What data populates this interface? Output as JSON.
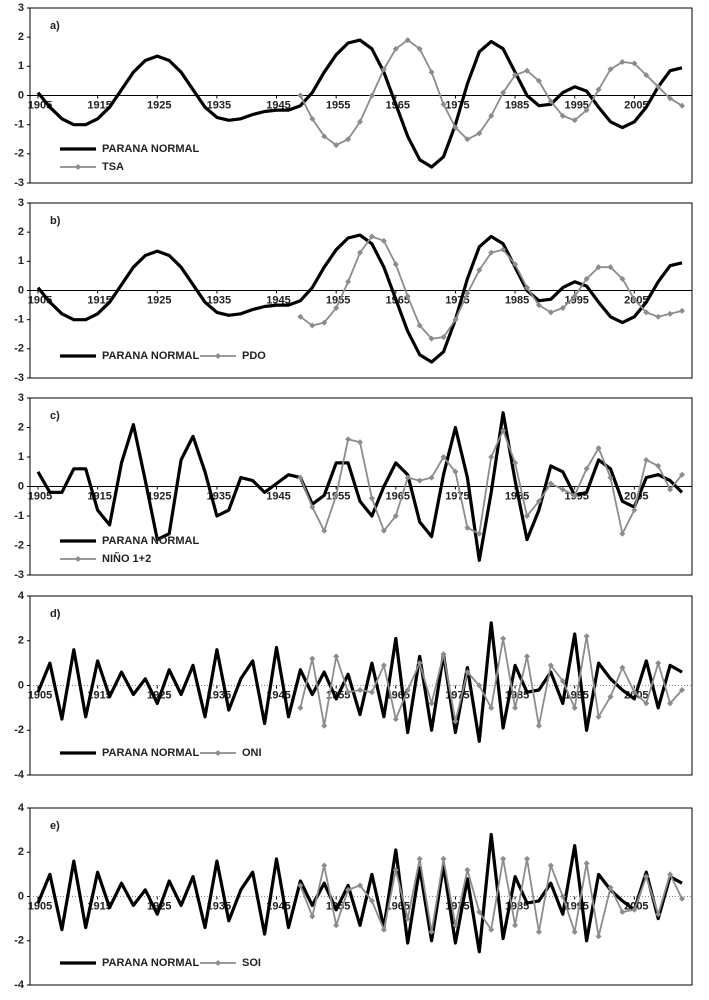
{
  "chart_data": [
    {
      "type": "line",
      "title": "a)",
      "x": [
        1905,
        1907,
        1909,
        1911,
        1913,
        1915,
        1917,
        1919,
        1921,
        1923,
        1925,
        1927,
        1929,
        1931,
        1933,
        1935,
        1937,
        1939,
        1941,
        1943,
        1945,
        1947,
        1949,
        1951,
        1953,
        1955,
        1957,
        1959,
        1961,
        1963,
        1965,
        1967,
        1969,
        1971,
        1973,
        1975,
        1977,
        1979,
        1981,
        1983,
        1985,
        1987,
        1989,
        1991,
        1993,
        1995,
        1997,
        1999,
        2001,
        2003,
        2005,
        2007,
        2009,
        2011,
        2013
      ],
      "xlim": [
        1905,
        2014
      ],
      "xticks": [
        1905,
        1915,
        1925,
        1935,
        1945,
        1955,
        1965,
        1975,
        1985,
        1995,
        2005
      ],
      "ylim": [
        -3,
        3
      ],
      "yticks": [
        -3,
        -2,
        -1,
        0,
        1,
        2,
        3
      ],
      "zero_line": "solid",
      "legend": "lower left",
      "series": [
        {
          "name": "PARANA NORMAL",
          "color": "#000000",
          "marker": "none",
          "values": [
            0.1,
            -0.4,
            -0.8,
            -1.0,
            -1.0,
            -0.8,
            -0.4,
            0.2,
            0.8,
            1.2,
            1.35,
            1.2,
            0.8,
            0.2,
            -0.4,
            -0.75,
            -0.85,
            -0.8,
            -0.65,
            -0.55,
            -0.5,
            -0.5,
            -0.35,
            0.1,
            0.8,
            1.4,
            1.8,
            1.9,
            1.6,
            0.8,
            -0.3,
            -1.4,
            -2.2,
            -2.45,
            -2.1,
            -1.0,
            0.4,
            1.5,
            1.85,
            1.6,
            0.8,
            0.0,
            -0.35,
            -0.3,
            0.1,
            0.3,
            0.15,
            -0.4,
            -0.9,
            -1.1,
            -0.9,
            -0.4,
            0.3,
            0.85,
            0.95
          ]
        },
        {
          "name": "TSA",
          "color": "#8c8c8c",
          "marker": "diamond",
          "values": [
            null,
            null,
            null,
            null,
            null,
            null,
            null,
            null,
            null,
            null,
            null,
            null,
            null,
            null,
            null,
            null,
            null,
            null,
            null,
            null,
            null,
            null,
            0.0,
            -0.8,
            -1.4,
            -1.7,
            -1.5,
            -0.9,
            0.0,
            0.9,
            1.6,
            1.9,
            1.6,
            0.8,
            -0.3,
            -1.1,
            -1.5,
            -1.3,
            -0.7,
            0.1,
            0.7,
            0.85,
            0.5,
            -0.2,
            -0.7,
            -0.85,
            -0.5,
            0.2,
            0.9,
            1.15,
            1.1,
            0.7,
            0.3,
            -0.1,
            -0.35
          ]
        }
      ]
    },
    {
      "type": "line",
      "title": "b)",
      "x": [
        1905,
        1907,
        1909,
        1911,
        1913,
        1915,
        1917,
        1919,
        1921,
        1923,
        1925,
        1927,
        1929,
        1931,
        1933,
        1935,
        1937,
        1939,
        1941,
        1943,
        1945,
        1947,
        1949,
        1951,
        1953,
        1955,
        1957,
        1959,
        1961,
        1963,
        1965,
        1967,
        1969,
        1971,
        1973,
        1975,
        1977,
        1979,
        1981,
        1983,
        1985,
        1987,
        1989,
        1991,
        1993,
        1995,
        1997,
        1999,
        2001,
        2003,
        2005,
        2007,
        2009,
        2011,
        2013
      ],
      "xlim": [
        1905,
        2014
      ],
      "xticks": [
        1905,
        1915,
        1925,
        1935,
        1945,
        1955,
        1965,
        1975,
        1985,
        1995,
        2005
      ],
      "ylim": [
        -3,
        3
      ],
      "yticks": [
        -3,
        -2,
        -1,
        0,
        1,
        2,
        3
      ],
      "zero_line": "solid",
      "legend": "lower left",
      "series": [
        {
          "name": "PARANA NORMAL",
          "color": "#000000",
          "marker": "none",
          "values": [
            0.1,
            -0.4,
            -0.8,
            -1.0,
            -1.0,
            -0.8,
            -0.4,
            0.2,
            0.8,
            1.2,
            1.35,
            1.2,
            0.8,
            0.2,
            -0.4,
            -0.75,
            -0.85,
            -0.8,
            -0.65,
            -0.55,
            -0.5,
            -0.5,
            -0.35,
            0.1,
            0.8,
            1.4,
            1.8,
            1.9,
            1.6,
            0.8,
            -0.3,
            -1.4,
            -2.2,
            -2.45,
            -2.1,
            -1.0,
            0.4,
            1.5,
            1.85,
            1.6,
            0.8,
            0.0,
            -0.35,
            -0.3,
            0.1,
            0.3,
            0.15,
            -0.4,
            -0.9,
            -1.1,
            -0.9,
            -0.4,
            0.3,
            0.85,
            0.95
          ]
        },
        {
          "name": "PDO",
          "color": "#8c8c8c",
          "marker": "diamond",
          "values": [
            null,
            null,
            null,
            null,
            null,
            null,
            null,
            null,
            null,
            null,
            null,
            null,
            null,
            null,
            null,
            null,
            null,
            null,
            null,
            null,
            null,
            null,
            -0.9,
            -1.2,
            -1.1,
            -0.6,
            0.3,
            1.3,
            1.85,
            1.7,
            0.9,
            -0.2,
            -1.2,
            -1.65,
            -1.6,
            -1.0,
            -0.1,
            0.7,
            1.3,
            1.4,
            0.9,
            0.1,
            -0.5,
            -0.75,
            -0.6,
            -0.2,
            0.4,
            0.8,
            0.8,
            0.4,
            -0.3,
            -0.75,
            -0.9,
            -0.8,
            -0.7
          ]
        }
      ]
    },
    {
      "type": "line",
      "title": "c)",
      "x": [
        1905,
        1907,
        1909,
        1911,
        1913,
        1915,
        1917,
        1919,
        1921,
        1923,
        1925,
        1927,
        1929,
        1931,
        1933,
        1935,
        1937,
        1939,
        1941,
        1943,
        1945,
        1947,
        1949,
        1951,
        1953,
        1955,
        1957,
        1959,
        1961,
        1963,
        1965,
        1967,
        1969,
        1971,
        1973,
        1975,
        1977,
        1979,
        1981,
        1983,
        1985,
        1987,
        1989,
        1991,
        1993,
        1995,
        1997,
        1999,
        2001,
        2003,
        2005,
        2007,
        2009,
        2011,
        2013
      ],
      "xlim": [
        1905,
        2014
      ],
      "xticks": [
        1905,
        1915,
        1925,
        1935,
        1945,
        1955,
        1965,
        1975,
        1985,
        1995,
        2005
      ],
      "ylim": [
        -3,
        3
      ],
      "yticks": [
        -3,
        -2,
        -1,
        0,
        1,
        2,
        3
      ],
      "zero_line": "solid",
      "legend": "lower left",
      "series": [
        {
          "name": "PARANA NORMAL",
          "color": "#000000",
          "marker": "none",
          "values": [
            0.5,
            -0.2,
            -0.2,
            0.6,
            0.6,
            -0.8,
            -1.3,
            0.8,
            2.1,
            0.2,
            -1.8,
            -1.6,
            0.9,
            1.7,
            0.5,
            -1.0,
            -0.8,
            0.3,
            0.2,
            -0.2,
            0.1,
            0.4,
            0.3,
            -0.6,
            -0.3,
            0.8,
            0.8,
            -0.5,
            -1.0,
            0.0,
            0.8,
            0.4,
            -1.2,
            -1.7,
            0.4,
            2.0,
            0.3,
            -2.5,
            -0.2,
            2.5,
            0.2,
            -1.8,
            -0.8,
            0.7,
            0.5,
            -0.3,
            -0.2,
            0.9,
            0.6,
            -0.5,
            -0.7,
            0.3,
            0.4,
            0.2,
            -0.2
          ]
        },
        {
          "name": "NIÑO 1+2",
          "color": "#8c8c8c",
          "marker": "diamond",
          "values": [
            null,
            null,
            null,
            null,
            null,
            null,
            null,
            null,
            null,
            null,
            null,
            null,
            null,
            null,
            null,
            null,
            null,
            null,
            null,
            null,
            null,
            null,
            0.3,
            -0.7,
            -1.5,
            -0.3,
            1.6,
            1.5,
            -0.4,
            -1.5,
            -1.0,
            0.3,
            0.2,
            0.3,
            1.0,
            0.5,
            -1.4,
            -1.6,
            1.0,
            1.9,
            0.8,
            -1.0,
            -0.5,
            0.1,
            -0.1,
            -0.3,
            0.6,
            1.3,
            0.3,
            -1.6,
            -0.8,
            0.9,
            0.7,
            -0.1,
            0.4
          ]
        }
      ]
    },
    {
      "type": "line",
      "title": "d)",
      "x": [
        1905,
        1907,
        1909,
        1911,
        1913,
        1915,
        1917,
        1919,
        1921,
        1923,
        1925,
        1927,
        1929,
        1931,
        1933,
        1935,
        1937,
        1939,
        1941,
        1943,
        1945,
        1947,
        1949,
        1951,
        1953,
        1955,
        1957,
        1959,
        1961,
        1963,
        1965,
        1967,
        1969,
        1971,
        1973,
        1975,
        1977,
        1979,
        1981,
        1983,
        1985,
        1987,
        1989,
        1991,
        1993,
        1995,
        1997,
        1999,
        2001,
        2003,
        2005,
        2007,
        2009,
        2011,
        2013
      ],
      "xlim": [
        1905,
        2014
      ],
      "xticks": [
        1905,
        1915,
        1925,
        1935,
        1945,
        1955,
        1965,
        1975,
        1985,
        1995,
        2005
      ],
      "ylim": [
        -4,
        4
      ],
      "yticks": [
        -4,
        -2,
        0,
        2,
        4
      ],
      "zero_line": "dotted",
      "legend": "lower left",
      "series": [
        {
          "name": "PARANA NORMAL",
          "color": "#000000",
          "marker": "none",
          "values": [
            -0.3,
            1.0,
            -1.5,
            1.6,
            -1.4,
            1.1,
            -0.5,
            0.6,
            -0.4,
            0.3,
            -0.8,
            0.7,
            -0.4,
            0.9,
            -1.4,
            1.6,
            -1.1,
            0.3,
            1.1,
            -1.7,
            1.7,
            -1.4,
            0.7,
            -0.4,
            0.6,
            -0.6,
            0.5,
            -1.3,
            1.0,
            -1.4,
            2.1,
            -2.1,
            1.3,
            -2.0,
            1.4,
            -2.1,
            0.8,
            -2.5,
            2.8,
            -1.9,
            0.9,
            -0.3,
            -0.2,
            0.6,
            -0.8,
            2.3,
            -2.0,
            1.0,
            0.3,
            -0.2,
            -0.6,
            1.1,
            -1.0,
            0.9,
            0.6
          ]
        },
        {
          "name": "ONI",
          "color": "#8c8c8c",
          "marker": "diamond",
          "values": [
            null,
            null,
            null,
            null,
            null,
            null,
            null,
            null,
            null,
            null,
            null,
            null,
            null,
            null,
            null,
            null,
            null,
            null,
            null,
            null,
            null,
            null,
            -1.0,
            1.2,
            -1.8,
            1.3,
            -0.3,
            -0.2,
            -0.3,
            0.9,
            -1.5,
            -0.2,
            1.0,
            -0.8,
            1.4,
            -1.6,
            0.6,
            0.0,
            -1.0,
            2.1,
            -1.0,
            1.3,
            -1.8,
            0.9,
            0.2,
            -1.0,
            2.2,
            -1.4,
            -0.5,
            0.8,
            -0.3,
            -0.8,
            1.0,
            -0.8,
            -0.2
          ]
        }
      ]
    },
    {
      "type": "line",
      "title": "e)",
      "x": [
        1905,
        1907,
        1909,
        1911,
        1913,
        1915,
        1917,
        1919,
        1921,
        1923,
        1925,
        1927,
        1929,
        1931,
        1933,
        1935,
        1937,
        1939,
        1941,
        1943,
        1945,
        1947,
        1949,
        1951,
        1953,
        1955,
        1957,
        1959,
        1961,
        1963,
        1965,
        1967,
        1969,
        1971,
        1973,
        1975,
        1977,
        1979,
        1981,
        1983,
        1985,
        1987,
        1989,
        1991,
        1993,
        1995,
        1997,
        1999,
        2001,
        2003,
        2005,
        2007,
        2009,
        2011,
        2013
      ],
      "xlim": [
        1905,
        2014
      ],
      "xticks": [
        1905,
        1915,
        1925,
        1935,
        1945,
        1955,
        1965,
        1975,
        1985,
        1995,
        2005
      ],
      "ylim": [
        -4,
        4
      ],
      "yticks": [
        -4,
        -2,
        0,
        2,
        4
      ],
      "zero_line": "dotted",
      "legend": "lower left",
      "series": [
        {
          "name": "PARANA NORMAL",
          "color": "#000000",
          "marker": "none",
          "values": [
            -0.3,
            1.0,
            -1.5,
            1.6,
            -1.4,
            1.1,
            -0.5,
            0.6,
            -0.4,
            0.3,
            -0.8,
            0.7,
            -0.4,
            0.9,
            -1.4,
            1.6,
            -1.1,
            0.3,
            1.1,
            -1.7,
            1.7,
            -1.4,
            0.7,
            -0.4,
            0.6,
            -0.6,
            0.5,
            -1.3,
            1.0,
            -1.4,
            2.1,
            -2.1,
            1.3,
            -2.0,
            1.4,
            -2.1,
            0.8,
            -2.5,
            2.8,
            -1.9,
            0.9,
            -0.3,
            -0.2,
            0.6,
            -0.8,
            2.3,
            -2.0,
            1.0,
            0.3,
            -0.2,
            -0.6,
            1.1,
            -1.0,
            0.9,
            0.6
          ]
        },
        {
          "name": "SOI",
          "color": "#8c8c8c",
          "marker": "diamond",
          "values": [
            null,
            null,
            null,
            null,
            null,
            null,
            null,
            null,
            null,
            null,
            null,
            null,
            null,
            null,
            null,
            null,
            null,
            null,
            null,
            null,
            null,
            null,
            0.5,
            -0.9,
            1.4,
            -1.3,
            0.3,
            0.5,
            -0.2,
            -1.5,
            1.2,
            -1.0,
            1.7,
            -1.6,
            1.7,
            -1.3,
            1.2,
            -0.7,
            -1.5,
            1.7,
            -1.3,
            1.7,
            -1.6,
            1.4,
            0.0,
            -1.6,
            1.5,
            -1.8,
            0.4,
            -0.7,
            -0.6,
            0.9,
            -0.8,
            1.0,
            -0.1
          ]
        }
      ]
    }
  ]
}
